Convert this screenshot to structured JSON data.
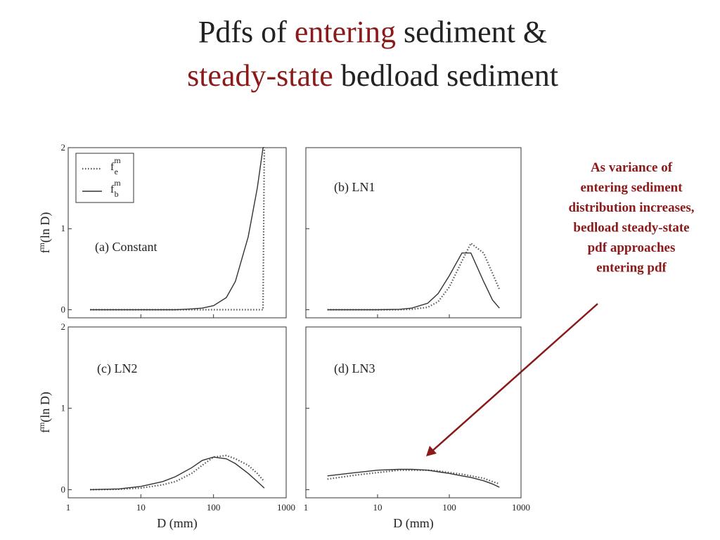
{
  "slide": {
    "title_line1": [
      {
        "text": "Pdfs of ",
        "accent": false
      },
      {
        "text": "entering",
        "accent": true
      },
      {
        "text": " sediment &",
        "accent": false
      }
    ],
    "title_line2": [
      {
        "text": "steady-state",
        "accent": true
      },
      {
        "text": " bedload sediment",
        "accent": false
      }
    ],
    "annotation": [
      "As variance of",
      "entering sediment",
      "distribution increases,",
      "bedload steady-state",
      "pdf approaches",
      "entering pdf"
    ]
  },
  "chart_data": [
    {
      "type": "line",
      "label": "(a) Constant",
      "xlog": true,
      "xlim": [
        1,
        1000
      ],
      "ylim": [
        -0.1,
        2
      ],
      "xticks": [
        1,
        10,
        100,
        1000
      ],
      "yticks": [
        0,
        1,
        2
      ],
      "show_xticklabels": false,
      "show_yticklabels": true,
      "ylabel": "f",
      "ylabel_sup": "m",
      "ylabel_tail": "(ln D)",
      "legend": "upper left",
      "x": [
        2,
        5,
        10,
        20,
        30,
        50,
        70,
        100,
        150,
        200,
        300,
        400,
        480,
        500
      ],
      "series": [
        {
          "name": "f",
          "subscript": "e",
          "superscript": "m",
          "color": "#555555",
          "style": "dotted",
          "values": [
            0,
            0,
            0,
            0,
            0,
            0,
            0,
            0,
            0,
            0,
            0,
            0,
            0,
            2
          ]
        },
        {
          "name": "f",
          "subscript": "b",
          "superscript": "m",
          "color": "#333333",
          "style": "solid",
          "values": [
            0,
            0,
            0,
            0,
            0,
            0.01,
            0.02,
            0.05,
            0.15,
            0.35,
            0.9,
            1.5,
            2,
            2
          ]
        }
      ]
    },
    {
      "type": "line",
      "label": "(b) LN1",
      "xlog": true,
      "xlim": [
        1,
        1000
      ],
      "ylim": [
        -0.1,
        2
      ],
      "xticks": [
        1,
        10,
        100,
        1000
      ],
      "yticks": [
        0,
        1,
        2
      ],
      "show_xticklabels": false,
      "show_yticklabels": false,
      "x": [
        2,
        5,
        10,
        20,
        30,
        50,
        70,
        100,
        150,
        200,
        300,
        400,
        500
      ],
      "series": [
        {
          "color": "#555555",
          "style": "dotted",
          "values": [
            0,
            0,
            0,
            0,
            0.005,
            0.03,
            0.1,
            0.28,
            0.6,
            0.82,
            0.7,
            0.45,
            0.25
          ]
        },
        {
          "color": "#333333",
          "style": "solid",
          "values": [
            0,
            0,
            0,
            0.005,
            0.02,
            0.08,
            0.2,
            0.42,
            0.7,
            0.7,
            0.35,
            0.12,
            0.02
          ]
        }
      ]
    },
    {
      "type": "line",
      "label": "(c) LN2",
      "xlog": true,
      "xlim": [
        1,
        1000
      ],
      "ylim": [
        -0.1,
        2
      ],
      "xticks": [
        1,
        10,
        100,
        1000
      ],
      "yticks": [
        0,
        1,
        2
      ],
      "show_xticklabels": true,
      "show_yticklabels": true,
      "xlabel": "D (mm)",
      "ylabel": "f",
      "ylabel_sup": "m",
      "ylabel_tail": "(ln D)",
      "x": [
        2,
        5,
        10,
        20,
        30,
        50,
        70,
        100,
        150,
        200,
        300,
        400,
        500
      ],
      "series": [
        {
          "color": "#555555",
          "style": "dotted",
          "values": [
            0,
            0.005,
            0.02,
            0.06,
            0.1,
            0.2,
            0.3,
            0.4,
            0.42,
            0.38,
            0.3,
            0.2,
            0.1
          ]
        },
        {
          "color": "#333333",
          "style": "solid",
          "values": [
            0,
            0.01,
            0.04,
            0.1,
            0.16,
            0.27,
            0.36,
            0.4,
            0.38,
            0.32,
            0.2,
            0.1,
            0.02
          ]
        }
      ]
    },
    {
      "type": "line",
      "label": "(d) LN3",
      "xlog": true,
      "xlim": [
        1,
        1000
      ],
      "ylim": [
        -0.1,
        2
      ],
      "xticks": [
        1,
        10,
        100,
        1000
      ],
      "yticks": [
        0,
        1,
        2
      ],
      "show_xticklabels": true,
      "show_yticklabels": false,
      "xlabel": "D (mm)",
      "x": [
        2,
        5,
        10,
        20,
        30,
        50,
        70,
        100,
        150,
        200,
        300,
        400,
        500
      ],
      "series": [
        {
          "color": "#555555",
          "style": "dotted",
          "values": [
            0.13,
            0.18,
            0.21,
            0.24,
            0.24,
            0.24,
            0.23,
            0.21,
            0.19,
            0.17,
            0.14,
            0.1,
            0.07
          ]
        },
        {
          "color": "#333333",
          "style": "solid",
          "values": [
            0.17,
            0.21,
            0.24,
            0.25,
            0.25,
            0.24,
            0.22,
            0.2,
            0.17,
            0.15,
            0.11,
            0.07,
            0.03
          ]
        }
      ]
    }
  ]
}
